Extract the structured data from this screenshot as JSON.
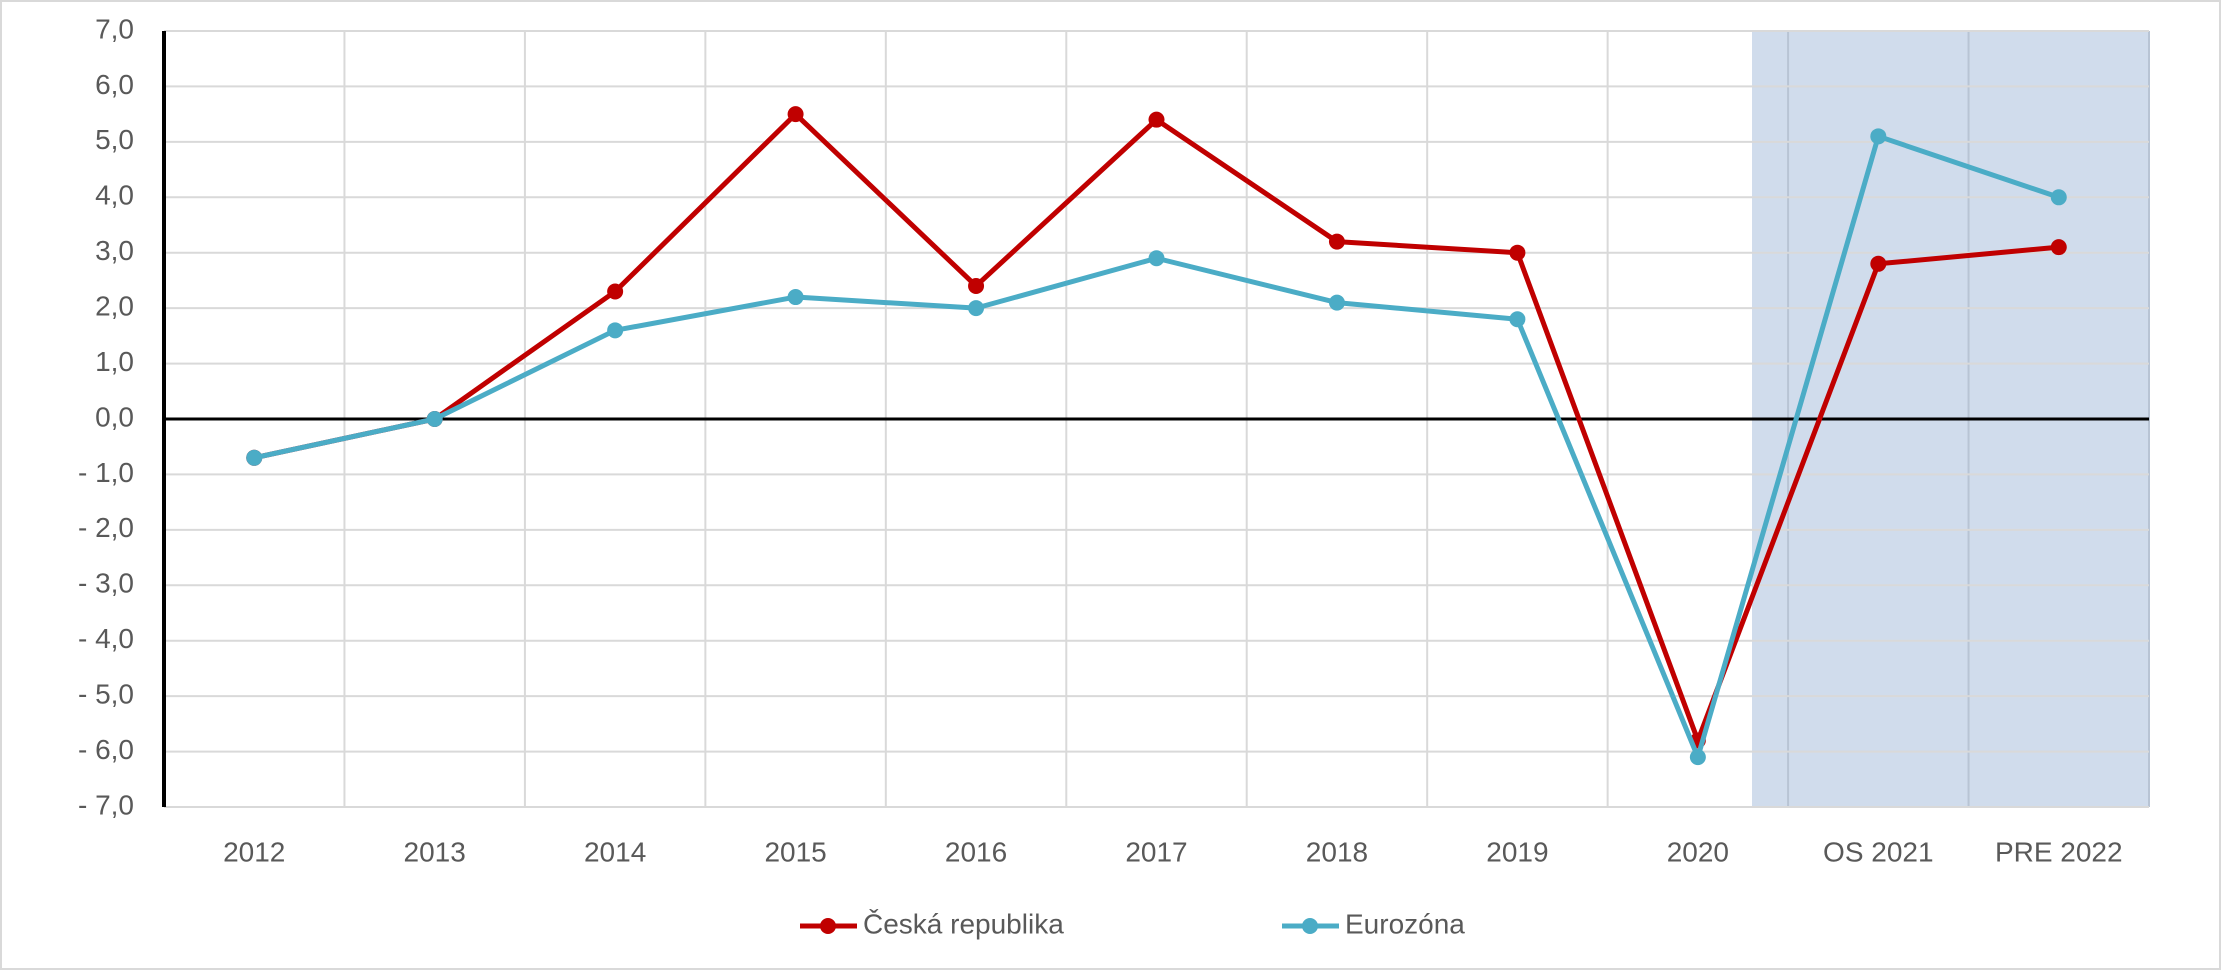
{
  "chart_data": {
    "type": "line",
    "categories": [
      "2012",
      "2013",
      "2014",
      "2015",
      "2016",
      "2017",
      "2018",
      "2019",
      "2020",
      "OS 2021",
      "PRE 2022"
    ],
    "series": [
      {
        "name": "Česká republika",
        "color": "#c00000",
        "values": [
          -0.7,
          0.0,
          2.3,
          5.5,
          2.4,
          5.4,
          3.2,
          3.0,
          -5.8,
          2.8,
          3.1
        ]
      },
      {
        "name": "Eurozóna",
        "color": "#4bacc6",
        "values": [
          -0.7,
          0.0,
          1.6,
          2.2,
          2.0,
          2.9,
          2.1,
          1.8,
          -6.1,
          5.1,
          4.0
        ]
      }
    ],
    "ylim": [
      -7,
      7
    ],
    "yticks": [
      {
        "value": -7,
        "label": "- 7,0"
      },
      {
        "value": -6,
        "label": "- 6,0"
      },
      {
        "value": -5,
        "label": "- 5,0"
      },
      {
        "value": -4,
        "label": "- 4,0"
      },
      {
        "value": -3,
        "label": "- 3,0"
      },
      {
        "value": -2,
        "label": "- 2,0"
      },
      {
        "value": -1,
        "label": "- 1,0"
      },
      {
        "value": 0,
        "label": "0,0"
      },
      {
        "value": 1,
        "label": "1,0"
      },
      {
        "value": 2,
        "label": "2,0"
      },
      {
        "value": 3,
        "label": "3,0"
      },
      {
        "value": 4,
        "label": "4,0"
      },
      {
        "value": 5,
        "label": "5,0"
      },
      {
        "value": 6,
        "label": "6,0"
      },
      {
        "value": 7,
        "label": "7,0"
      }
    ],
    "grid": true,
    "legend": "bottom"
  }
}
